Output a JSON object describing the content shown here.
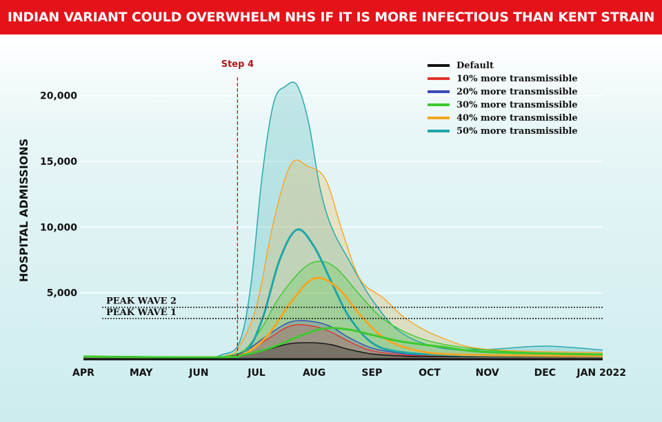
{
  "headline": "INDIAN VARIANT COULD OVERWHELM NHS IF IT IS MORE INFECTIOUS THAN KENT STRAIN",
  "chart_data": {
    "type": "area",
    "ylabel": "HOSPITAL ADMISSIONS",
    "xlabel": "",
    "x_tick_labels": [
      "APR",
      "MAY",
      "JUN",
      "JUL",
      "AUG",
      "SEP",
      "OCT",
      "NOV",
      "DEC",
      "JAN 2022"
    ],
    "y_ticks": [
      5000,
      10000,
      15000,
      20000
    ],
    "y_tick_labels": [
      "5,000",
      "10,000",
      "15,000",
      "20,000"
    ],
    "ylim": [
      0,
      21500
    ],
    "x_unit": "months since 1 April 2021",
    "grid": true,
    "legend_position": "top-right",
    "reference_lines": [
      {
        "label": "PEAK WAVE 2",
        "y": 3900
      },
      {
        "label": "PEAK WAVE 1",
        "y": 3050
      }
    ],
    "event_marker": {
      "label": "Step 4",
      "x": 2.67
    },
    "series": [
      {
        "name": "Default",
        "color": "#111111",
        "x": [
          0,
          2,
          2.5,
          2.8,
          3.2,
          3.6,
          4,
          4.3,
          4.6,
          5,
          5.5,
          6,
          9
        ],
        "y": [
          150,
          80,
          120,
          250,
          700,
          1150,
          1200,
          1050,
          700,
          350,
          200,
          150,
          150
        ]
      },
      {
        "name": "10% more transmissible",
        "color": "#e5332a",
        "x": [
          0,
          2,
          2.5,
          2.8,
          3.2,
          3.6,
          4,
          4.3,
          4.6,
          5,
          5.5,
          6,
          9
        ],
        "y": [
          150,
          80,
          150,
          450,
          1500,
          2500,
          2450,
          2000,
          1300,
          600,
          300,
          200,
          150
        ]
      },
      {
        "name": "20% more transmissible",
        "color": "#3a49b5",
        "x": [
          0,
          2,
          2.5,
          2.8,
          3.2,
          3.6,
          4,
          4.3,
          4.6,
          5,
          5.5,
          6,
          9
        ],
        "y": [
          150,
          80,
          150,
          550,
          1800,
          2800,
          2800,
          2400,
          1600,
          800,
          400,
          250,
          150
        ]
      },
      {
        "name": "30% more transmissible",
        "color": "#3cc92d",
        "x": [
          0,
          2,
          2.5,
          2.8,
          3.1,
          3.4,
          3.8,
          4.1,
          4.4,
          4.8,
          5.2,
          5.8,
          6.5,
          7.5,
          9
        ],
        "y": [
          150,
          80,
          200,
          700,
          2400,
          4700,
          6800,
          7400,
          6800,
          4800,
          3000,
          1600,
          900,
          500,
          350
        ]
      },
      {
        "name": "40% more transmissible",
        "color": "#f5a623",
        "x": [
          0,
          2,
          2.5,
          2.7,
          3,
          3.3,
          3.6,
          3.9,
          4.2,
          4.5,
          4.8,
          5.2,
          5.6,
          6.2,
          7,
          9
        ],
        "y": [
          150,
          80,
          250,
          900,
          4000,
          10500,
          14800,
          14600,
          13600,
          9500,
          6000,
          4600,
          3000,
          1600,
          700,
          450
        ]
      },
      {
        "name": "50% more transmissible",
        "color": "#1ea5a8",
        "x": [
          0,
          2,
          2.4,
          2.7,
          2.9,
          3.1,
          3.3,
          3.5,
          3.7,
          3.9,
          4.1,
          4.3,
          4.6,
          5,
          5.5,
          6.2,
          7,
          8,
          9
        ],
        "y": [
          150,
          100,
          300,
          1200,
          5500,
          14000,
          19500,
          20700,
          20800,
          18000,
          13000,
          10000,
          7500,
          4500,
          2000,
          800,
          700,
          950,
          650
        ]
      }
    ],
    "inner_lines": [
      {
        "color": "#1ea5a8",
        "x": [
          0,
          2.3,
          2.8,
          3.1,
          3.4,
          3.7,
          4,
          4.3,
          4.6,
          5,
          5.5,
          6.5,
          9
        ],
        "y": [
          150,
          100,
          500,
          3000,
          7500,
          9800,
          8500,
          5800,
          3200,
          1200,
          500,
          250,
          200
        ]
      },
      {
        "color": "#f5a623",
        "x": [
          0,
          2.3,
          2.8,
          3.2,
          3.6,
          4,
          4.4,
          4.8,
          5.2,
          5.7,
          6.5,
          9
        ],
        "y": [
          150,
          100,
          400,
          1800,
          4300,
          6100,
          5400,
          3300,
          1600,
          700,
          300,
          200
        ]
      },
      {
        "color": "#3cc92d",
        "x": [
          0,
          2.3,
          2.8,
          3.3,
          3.8,
          4.2,
          4.6,
          5,
          5.5,
          6.2,
          7,
          9
        ],
        "y": [
          150,
          100,
          300,
          900,
          1800,
          2300,
          2200,
          1800,
          1300,
          900,
          500,
          300
        ]
      }
    ]
  },
  "colors": {
    "banner": "#e4131a",
    "grid": "#ffffff",
    "step_line": "#b0161c"
  }
}
